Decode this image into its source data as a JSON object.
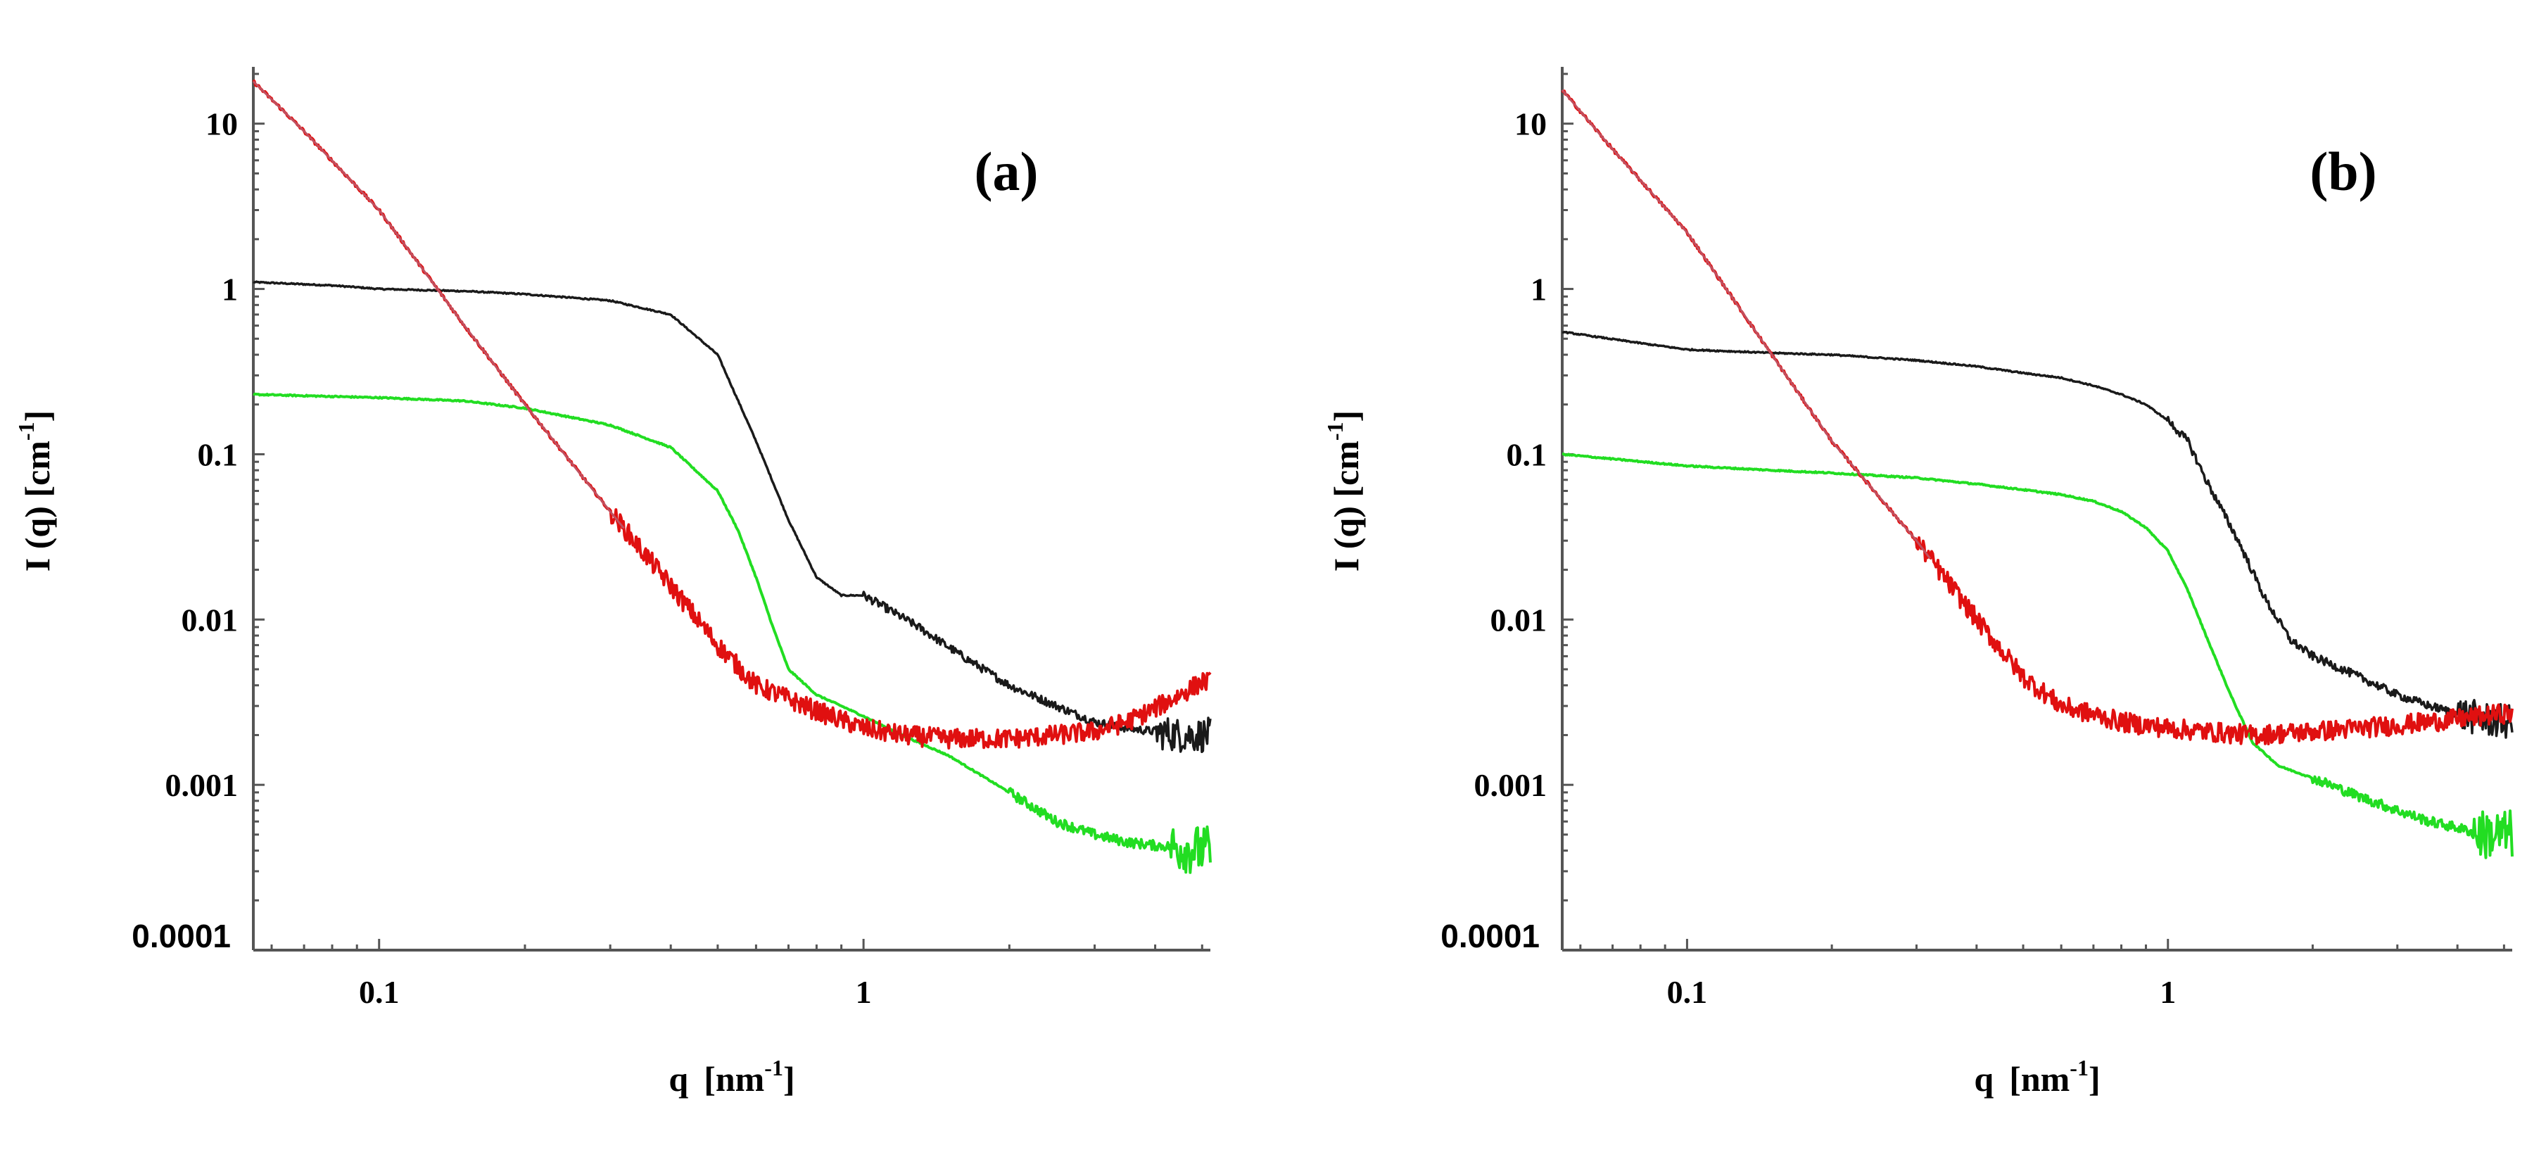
{
  "colors": {
    "black_series": "#1a1a1a",
    "green_series": "#22dd22",
    "red_series": "#e01010",
    "pink_series": "#c05060"
  },
  "chart_data": [
    {
      "type": "line",
      "panel_label": "(a)",
      "xscale": "log",
      "yscale": "log",
      "xlim": [
        0.055,
        5.2
      ],
      "ylim": [
        0.0001,
        20
      ],
      "xlabel": "q",
      "xlabel_unit": "[nm",
      "xlabel_unit_sup": "-1",
      "xlabel_unit_end": "]",
      "ylabel": "I (q) [cm",
      "ylabel_sup": "-1",
      "ylabel_end": "]",
      "x_ticks": [
        {
          "value": 0.1,
          "label": "0.1"
        },
        {
          "value": 1,
          "label": "1"
        }
      ],
      "y_ticks": [
        {
          "value": 10,
          "label": "10"
        },
        {
          "value": 1,
          "label": "1"
        },
        {
          "value": 0.1,
          "label": "0.1"
        },
        {
          "value": 0.01,
          "label": "0.01"
        },
        {
          "value": 0.001,
          "label": "0.001"
        },
        {
          "value": 0.0001,
          "label": "0.0001"
        }
      ],
      "series": [
        {
          "name": "black",
          "color": "#1a1a1a",
          "x": [
            0.055,
            0.08,
            0.1,
            0.15,
            0.2,
            0.3,
            0.4,
            0.5,
            0.6,
            0.7,
            0.8,
            0.9,
            1.0,
            1.1,
            1.3,
            1.6,
            2.0,
            2.5,
            3.0,
            3.5,
            4.0,
            4.5,
            5.0
          ],
          "y": [
            1.1,
            1.05,
            1.0,
            0.97,
            0.93,
            0.85,
            0.7,
            0.4,
            0.12,
            0.04,
            0.018,
            0.014,
            0.014,
            0.012,
            0.009,
            0.006,
            0.004,
            0.003,
            0.0024,
            0.0022,
            0.0021,
            0.002,
            0.002
          ]
        },
        {
          "name": "green",
          "color": "#22dd22",
          "x": [
            0.055,
            0.1,
            0.15,
            0.2,
            0.3,
            0.4,
            0.5,
            0.55,
            0.6,
            0.65,
            0.7,
            0.8,
            0.9,
            1.0,
            1.2,
            1.5,
            2.0,
            2.5,
            3.0,
            3.5,
            4.0,
            4.5,
            5.0
          ],
          "y": [
            0.23,
            0.22,
            0.21,
            0.19,
            0.15,
            0.11,
            0.06,
            0.035,
            0.018,
            0.009,
            0.005,
            0.0035,
            0.003,
            0.0026,
            0.002,
            0.0015,
            0.0009,
            0.0006,
            0.0005,
            0.00045,
            0.00043,
            0.00042,
            0.0004
          ]
        },
        {
          "name": "red",
          "color": "#e01010",
          "x": [
            0.055,
            0.07,
            0.1,
            0.15,
            0.2,
            0.3,
            0.4,
            0.5,
            0.6,
            0.8,
            1.0,
            1.2,
            1.5,
            2.0,
            2.5,
            3.0,
            3.5,
            4.0,
            4.5,
            5.0
          ],
          "y": [
            18,
            9,
            3.0,
            0.6,
            0.2,
            0.045,
            0.016,
            0.007,
            0.004,
            0.0028,
            0.0022,
            0.002,
            0.0019,
            0.0019,
            0.002,
            0.0021,
            0.0024,
            0.0029,
            0.0035,
            0.0042
          ]
        }
      ]
    },
    {
      "type": "line",
      "panel_label": "(b)",
      "xscale": "log",
      "yscale": "log",
      "xlim": [
        0.055,
        5.2
      ],
      "ylim": [
        0.0001,
        20
      ],
      "xlabel": "q",
      "xlabel_unit": "[nm",
      "xlabel_unit_sup": "-1",
      "xlabel_unit_end": "]",
      "ylabel": "I (q) [cm",
      "ylabel_sup": "-1",
      "ylabel_end": "]",
      "x_ticks": [
        {
          "value": 0.1,
          "label": "0.1"
        },
        {
          "value": 1,
          "label": "1"
        }
      ],
      "y_ticks": [
        {
          "value": 10,
          "label": "10"
        },
        {
          "value": 1,
          "label": "1"
        },
        {
          "value": 0.1,
          "label": "0.1"
        },
        {
          "value": 0.01,
          "label": "0.01"
        },
        {
          "value": 0.001,
          "label": "0.001"
        },
        {
          "value": 0.0001,
          "label": "0.0001"
        }
      ],
      "series": [
        {
          "name": "black",
          "color": "#1a1a1a",
          "x": [
            0.055,
            0.08,
            0.1,
            0.15,
            0.2,
            0.3,
            0.4,
            0.5,
            0.6,
            0.7,
            0.8,
            0.9,
            1.0,
            1.1,
            1.2,
            1.4,
            1.6,
            1.8,
            2.0,
            2.5,
            3.0,
            3.5,
            4.0,
            4.5,
            5.0
          ],
          "y": [
            0.55,
            0.47,
            0.43,
            0.41,
            0.4,
            0.37,
            0.34,
            0.31,
            0.29,
            0.26,
            0.23,
            0.2,
            0.16,
            0.12,
            0.07,
            0.03,
            0.013,
            0.0075,
            0.006,
            0.0045,
            0.0035,
            0.003,
            0.0027,
            0.0025,
            0.0024
          ]
        },
        {
          "name": "green",
          "color": "#22dd22",
          "x": [
            0.055,
            0.1,
            0.15,
            0.2,
            0.3,
            0.4,
            0.5,
            0.6,
            0.7,
            0.8,
            0.9,
            1.0,
            1.1,
            1.2,
            1.35,
            1.5,
            1.7,
            2.0,
            2.5,
            3.0,
            3.5,
            4.0,
            4.5,
            5.0
          ],
          "y": [
            0.1,
            0.085,
            0.08,
            0.077,
            0.072,
            0.066,
            0.061,
            0.057,
            0.052,
            0.045,
            0.036,
            0.026,
            0.015,
            0.008,
            0.0035,
            0.0018,
            0.0013,
            0.0011,
            0.00085,
            0.0007,
            0.0006,
            0.00055,
            0.0005,
            0.0005
          ]
        },
        {
          "name": "red",
          "color": "#e01010",
          "x": [
            0.055,
            0.07,
            0.1,
            0.15,
            0.2,
            0.3,
            0.4,
            0.5,
            0.6,
            0.8,
            1.0,
            1.2,
            1.5,
            2.0,
            2.5,
            3.0,
            3.5,
            4.0,
            4.5,
            5.0
          ],
          "y": [
            16,
            7,
            2.2,
            0.4,
            0.12,
            0.03,
            0.01,
            0.0045,
            0.003,
            0.0024,
            0.0022,
            0.0021,
            0.002,
            0.0021,
            0.0022,
            0.0023,
            0.0024,
            0.0025,
            0.0026,
            0.0027
          ]
        }
      ]
    }
  ]
}
